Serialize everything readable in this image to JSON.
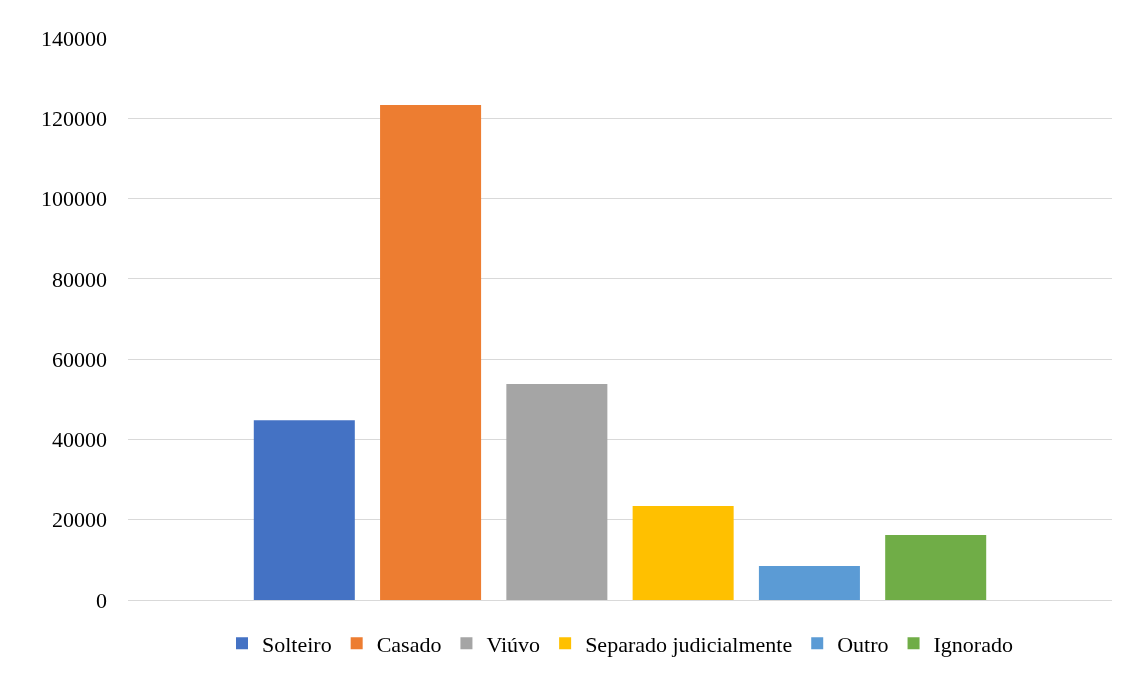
{
  "chart_data": {
    "type": "bar",
    "categories": [
      null
    ],
    "series": [
      {
        "name": "Solteiro",
        "color": "#4472c4",
        "values": [
          44800
        ]
      },
      {
        "name": "Casado",
        "color": "#ed7d31",
        "values": [
          123300
        ]
      },
      {
        "name": "Viúvo",
        "color": "#a5a5a5",
        "values": [
          53800
        ]
      },
      {
        "name": "Separado judicialmente",
        "color": "#ffc000",
        "values": [
          23400
        ]
      },
      {
        "name": "Outro",
        "color": "#5b9bd5",
        "values": [
          8500
        ]
      },
      {
        "name": "Ignorado",
        "color": "#70ad47",
        "values": [
          16200
        ]
      }
    ],
    "ylim": [
      0,
      140000
    ],
    "yticks": [
      0,
      20000,
      40000,
      60000,
      80000,
      100000,
      120000,
      140000
    ],
    "grid": "y",
    "legend": "bottom"
  }
}
